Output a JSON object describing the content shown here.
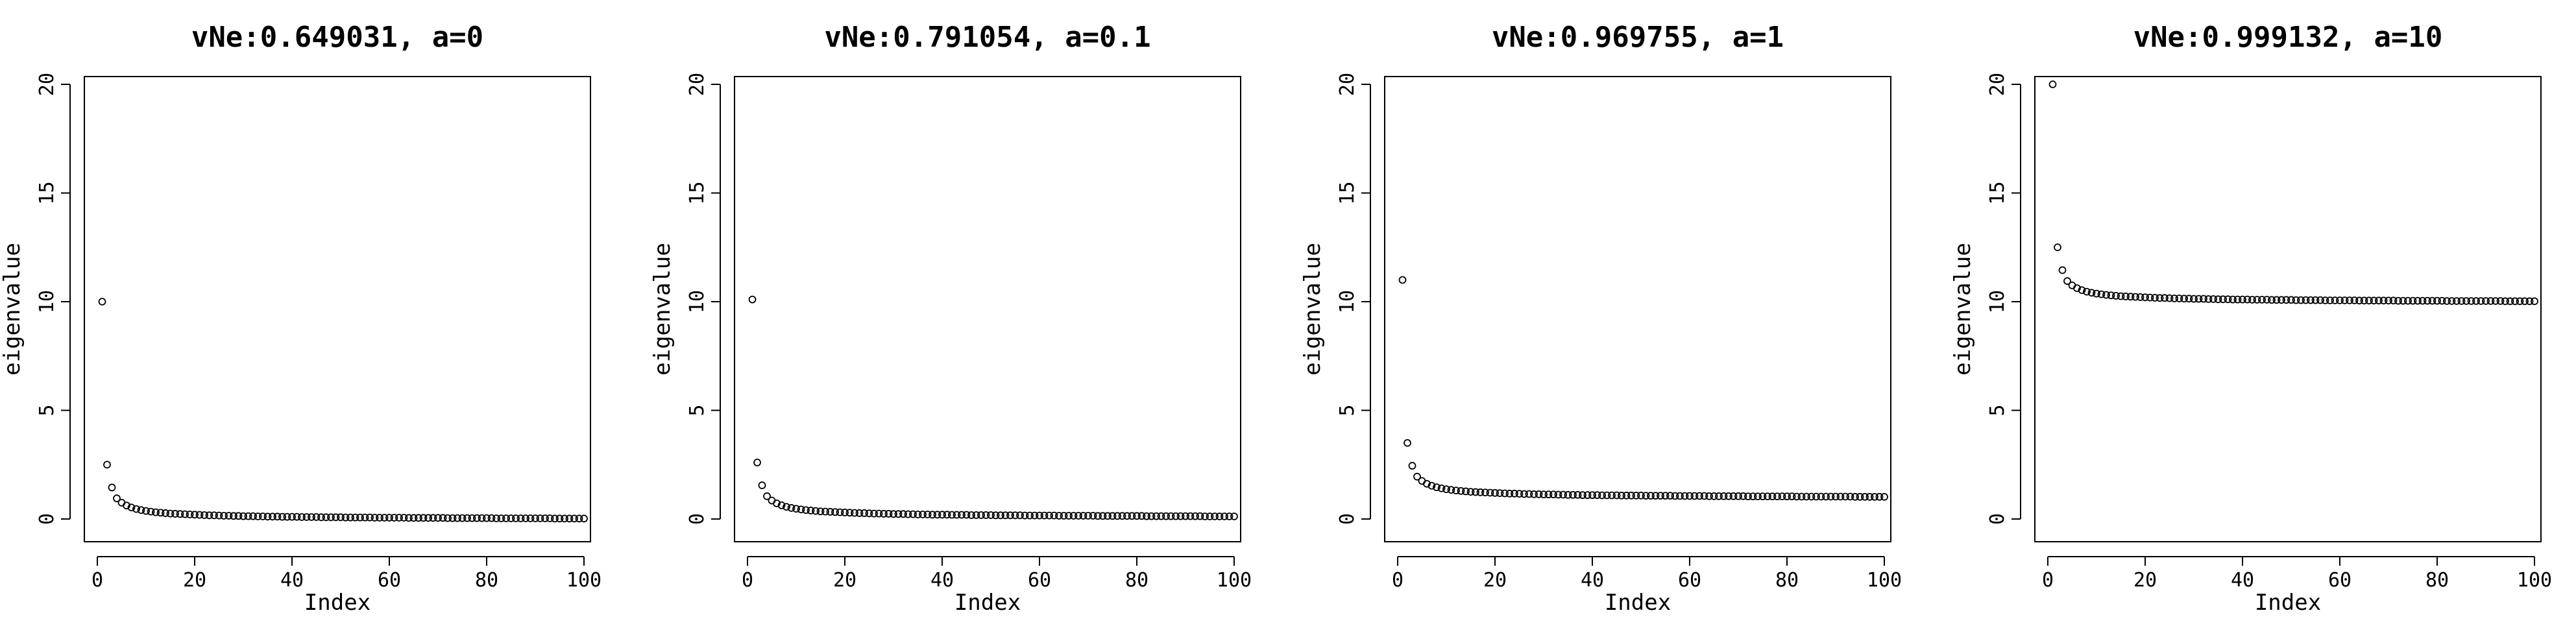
{
  "chart_data": [
    {
      "type": "scatter",
      "title": "vNe:0.649031, a=0",
      "xlabel": "Index",
      "ylabel": "eigenvalue",
      "xlim": [
        0,
        100
      ],
      "ylim": [
        0,
        20
      ],
      "xticks": [
        0,
        20,
        40,
        60,
        80,
        100
      ],
      "yticks": [
        0,
        5,
        10,
        15,
        20
      ],
      "x_tick_labels": [
        "0",
        "20",
        "40",
        "60",
        "80",
        "100"
      ],
      "y_tick_labels": [
        "0",
        "5",
        "10",
        "15",
        "20"
      ],
      "grid": false,
      "x": [
        1,
        2,
        3,
        4,
        5,
        6,
        7,
        8,
        9,
        10,
        11,
        12,
        13,
        14,
        15,
        16,
        17,
        18,
        19,
        20,
        21,
        22,
        23,
        24,
        25,
        26,
        27,
        28,
        29,
        30,
        31,
        32,
        33,
        34,
        35,
        36,
        37,
        38,
        39,
        40,
        41,
        42,
        43,
        44,
        45,
        46,
        47,
        48,
        49,
        50,
        51,
        52,
        53,
        54,
        55,
        56,
        57,
        58,
        59,
        60,
        61,
        62,
        63,
        64,
        65,
        66,
        67,
        68,
        69,
        70,
        71,
        72,
        73,
        74,
        75,
        76,
        77,
        78,
        79,
        80,
        81,
        82,
        83,
        84,
        85,
        86,
        87,
        88,
        89,
        90,
        91,
        92,
        93,
        94,
        95,
        96,
        97,
        98,
        99,
        100
      ],
      "y": [
        10.0,
        2.5,
        1.45,
        0.95,
        0.75,
        0.62,
        0.53,
        0.46,
        0.41,
        0.37,
        0.34,
        0.31,
        0.29,
        0.27,
        0.25,
        0.24,
        0.23,
        0.22,
        0.21,
        0.2,
        0.19,
        0.18,
        0.17,
        0.17,
        0.16,
        0.15,
        0.15,
        0.14,
        0.14,
        0.13,
        0.13,
        0.13,
        0.12,
        0.12,
        0.11,
        0.11,
        0.11,
        0.1,
        0.1,
        0.1,
        0.1,
        0.09,
        0.09,
        0.09,
        0.09,
        0.08,
        0.08,
        0.08,
        0.08,
        0.08,
        0.07,
        0.07,
        0.07,
        0.07,
        0.07,
        0.07,
        0.06,
        0.06,
        0.06,
        0.06,
        0.06,
        0.06,
        0.06,
        0.05,
        0.05,
        0.05,
        0.05,
        0.05,
        0.05,
        0.05,
        0.05,
        0.04,
        0.04,
        0.04,
        0.04,
        0.04,
        0.04,
        0.04,
        0.04,
        0.04,
        0.04,
        0.03,
        0.03,
        0.03,
        0.03,
        0.03,
        0.03,
        0.03,
        0.03,
        0.03,
        0.03,
        0.03,
        0.03,
        0.02,
        0.02,
        0.02,
        0.02,
        0.02,
        0.02,
        0.02
      ]
    },
    {
      "type": "scatter",
      "title": "vNe:0.791054, a=0.1",
      "xlabel": "Index",
      "ylabel": "eigenvalue",
      "xlim": [
        0,
        100
      ],
      "ylim": [
        0,
        20
      ],
      "xticks": [
        0,
        20,
        40,
        60,
        80,
        100
      ],
      "yticks": [
        0,
        5,
        10,
        15,
        20
      ],
      "x_tick_labels": [
        "0",
        "20",
        "40",
        "60",
        "80",
        "100"
      ],
      "y_tick_labels": [
        "0",
        "5",
        "10",
        "15",
        "20"
      ],
      "grid": false,
      "x": [
        1,
        2,
        3,
        4,
        5,
        6,
        7,
        8,
        9,
        10,
        11,
        12,
        13,
        14,
        15,
        16,
        17,
        18,
        19,
        20,
        21,
        22,
        23,
        24,
        25,
        26,
        27,
        28,
        29,
        30,
        31,
        32,
        33,
        34,
        35,
        36,
        37,
        38,
        39,
        40,
        41,
        42,
        43,
        44,
        45,
        46,
        47,
        48,
        49,
        50,
        51,
        52,
        53,
        54,
        55,
        56,
        57,
        58,
        59,
        60,
        61,
        62,
        63,
        64,
        65,
        66,
        67,
        68,
        69,
        70,
        71,
        72,
        73,
        74,
        75,
        76,
        77,
        78,
        79,
        80,
        81,
        82,
        83,
        84,
        85,
        86,
        87,
        88,
        89,
        90,
        91,
        92,
        93,
        94,
        95,
        96,
        97,
        98,
        99,
        100
      ],
      "y": [
        10.1,
        2.6,
        1.55,
        1.05,
        0.85,
        0.72,
        0.63,
        0.56,
        0.51,
        0.47,
        0.44,
        0.41,
        0.39,
        0.37,
        0.35,
        0.34,
        0.33,
        0.32,
        0.31,
        0.3,
        0.29,
        0.28,
        0.27,
        0.27,
        0.26,
        0.25,
        0.25,
        0.24,
        0.24,
        0.23,
        0.23,
        0.23,
        0.22,
        0.22,
        0.21,
        0.21,
        0.21,
        0.2,
        0.2,
        0.2,
        0.2,
        0.19,
        0.19,
        0.19,
        0.19,
        0.18,
        0.18,
        0.18,
        0.18,
        0.18,
        0.17,
        0.17,
        0.17,
        0.17,
        0.17,
        0.17,
        0.16,
        0.16,
        0.16,
        0.16,
        0.16,
        0.16,
        0.16,
        0.15,
        0.15,
        0.15,
        0.15,
        0.15,
        0.15,
        0.15,
        0.15,
        0.14,
        0.14,
        0.14,
        0.14,
        0.14,
        0.14,
        0.14,
        0.14,
        0.14,
        0.14,
        0.13,
        0.13,
        0.13,
        0.13,
        0.13,
        0.13,
        0.13,
        0.13,
        0.13,
        0.13,
        0.13,
        0.13,
        0.12,
        0.12,
        0.12,
        0.12,
        0.12,
        0.12,
        0.12
      ]
    },
    {
      "type": "scatter",
      "title": "vNe:0.969755, a=1",
      "xlabel": "Index",
      "ylabel": "eigenvalue",
      "xlim": [
        0,
        100
      ],
      "ylim": [
        0,
        20
      ],
      "xticks": [
        0,
        20,
        40,
        60,
        80,
        100
      ],
      "yticks": [
        0,
        5,
        10,
        15,
        20
      ],
      "x_tick_labels": [
        "0",
        "20",
        "40",
        "60",
        "80",
        "100"
      ],
      "y_tick_labels": [
        "0",
        "5",
        "10",
        "15",
        "20"
      ],
      "grid": false,
      "x": [
        1,
        2,
        3,
        4,
        5,
        6,
        7,
        8,
        9,
        10,
        11,
        12,
        13,
        14,
        15,
        16,
        17,
        18,
        19,
        20,
        21,
        22,
        23,
        24,
        25,
        26,
        27,
        28,
        29,
        30,
        31,
        32,
        33,
        34,
        35,
        36,
        37,
        38,
        39,
        40,
        41,
        42,
        43,
        44,
        45,
        46,
        47,
        48,
        49,
        50,
        51,
        52,
        53,
        54,
        55,
        56,
        57,
        58,
        59,
        60,
        61,
        62,
        63,
        64,
        65,
        66,
        67,
        68,
        69,
        70,
        71,
        72,
        73,
        74,
        75,
        76,
        77,
        78,
        79,
        80,
        81,
        82,
        83,
        84,
        85,
        86,
        87,
        88,
        89,
        90,
        91,
        92,
        93,
        94,
        95,
        96,
        97,
        98,
        99,
        100
      ],
      "y": [
        11.0,
        3.5,
        2.45,
        1.95,
        1.75,
        1.62,
        1.53,
        1.46,
        1.41,
        1.37,
        1.34,
        1.31,
        1.29,
        1.27,
        1.25,
        1.24,
        1.23,
        1.22,
        1.21,
        1.2,
        1.19,
        1.18,
        1.17,
        1.17,
        1.16,
        1.15,
        1.15,
        1.14,
        1.14,
        1.13,
        1.13,
        1.13,
        1.12,
        1.12,
        1.11,
        1.11,
        1.11,
        1.1,
        1.1,
        1.1,
        1.1,
        1.09,
        1.09,
        1.09,
        1.09,
        1.08,
        1.08,
        1.08,
        1.08,
        1.08,
        1.07,
        1.07,
        1.07,
        1.07,
        1.07,
        1.07,
        1.06,
        1.06,
        1.06,
        1.06,
        1.06,
        1.06,
        1.06,
        1.05,
        1.05,
        1.05,
        1.05,
        1.05,
        1.05,
        1.05,
        1.05,
        1.04,
        1.04,
        1.04,
        1.04,
        1.04,
        1.04,
        1.04,
        1.04,
        1.04,
        1.04,
        1.03,
        1.03,
        1.03,
        1.03,
        1.03,
        1.03,
        1.03,
        1.03,
        1.03,
        1.03,
        1.03,
        1.03,
        1.02,
        1.02,
        1.02,
        1.02,
        1.02,
        1.02,
        1.02
      ]
    },
    {
      "type": "scatter",
      "title": "vNe:0.999132, a=10",
      "xlabel": "Index",
      "ylabel": "eigenvalue",
      "xlim": [
        0,
        100
      ],
      "ylim": [
        0,
        20
      ],
      "xticks": [
        0,
        20,
        40,
        60,
        80,
        100
      ],
      "yticks": [
        0,
        5,
        10,
        15,
        20
      ],
      "x_tick_labels": [
        "0",
        "20",
        "40",
        "60",
        "80",
        "100"
      ],
      "y_tick_labels": [
        "0",
        "5",
        "10",
        "15",
        "20"
      ],
      "grid": false,
      "x": [
        1,
        2,
        3,
        4,
        5,
        6,
        7,
        8,
        9,
        10,
        11,
        12,
        13,
        14,
        15,
        16,
        17,
        18,
        19,
        20,
        21,
        22,
        23,
        24,
        25,
        26,
        27,
        28,
        29,
        30,
        31,
        32,
        33,
        34,
        35,
        36,
        37,
        38,
        39,
        40,
        41,
        42,
        43,
        44,
        45,
        46,
        47,
        48,
        49,
        50,
        51,
        52,
        53,
        54,
        55,
        56,
        57,
        58,
        59,
        60,
        61,
        62,
        63,
        64,
        65,
        66,
        67,
        68,
        69,
        70,
        71,
        72,
        73,
        74,
        75,
        76,
        77,
        78,
        79,
        80,
        81,
        82,
        83,
        84,
        85,
        86,
        87,
        88,
        89,
        90,
        91,
        92,
        93,
        94,
        95,
        96,
        97,
        98,
        99,
        100
      ],
      "y": [
        20.0,
        12.5,
        11.45,
        10.95,
        10.75,
        10.62,
        10.53,
        10.46,
        10.41,
        10.37,
        10.34,
        10.31,
        10.29,
        10.27,
        10.25,
        10.24,
        10.23,
        10.22,
        10.21,
        10.2,
        10.19,
        10.18,
        10.17,
        10.17,
        10.16,
        10.15,
        10.15,
        10.14,
        10.14,
        10.13,
        10.13,
        10.13,
        10.12,
        10.12,
        10.11,
        10.11,
        10.11,
        10.1,
        10.1,
        10.1,
        10.1,
        10.09,
        10.09,
        10.09,
        10.09,
        10.08,
        10.08,
        10.08,
        10.08,
        10.08,
        10.07,
        10.07,
        10.07,
        10.07,
        10.07,
        10.07,
        10.06,
        10.06,
        10.06,
        10.06,
        10.06,
        10.06,
        10.06,
        10.05,
        10.05,
        10.05,
        10.05,
        10.05,
        10.05,
        10.05,
        10.05,
        10.04,
        10.04,
        10.04,
        10.04,
        10.04,
        10.04,
        10.04,
        10.04,
        10.04,
        10.04,
        10.03,
        10.03,
        10.03,
        10.03,
        10.03,
        10.03,
        10.03,
        10.03,
        10.03,
        10.03,
        10.03,
        10.03,
        10.02,
        10.02,
        10.02,
        10.02,
        10.02,
        10.02,
        10.02
      ]
    }
  ]
}
